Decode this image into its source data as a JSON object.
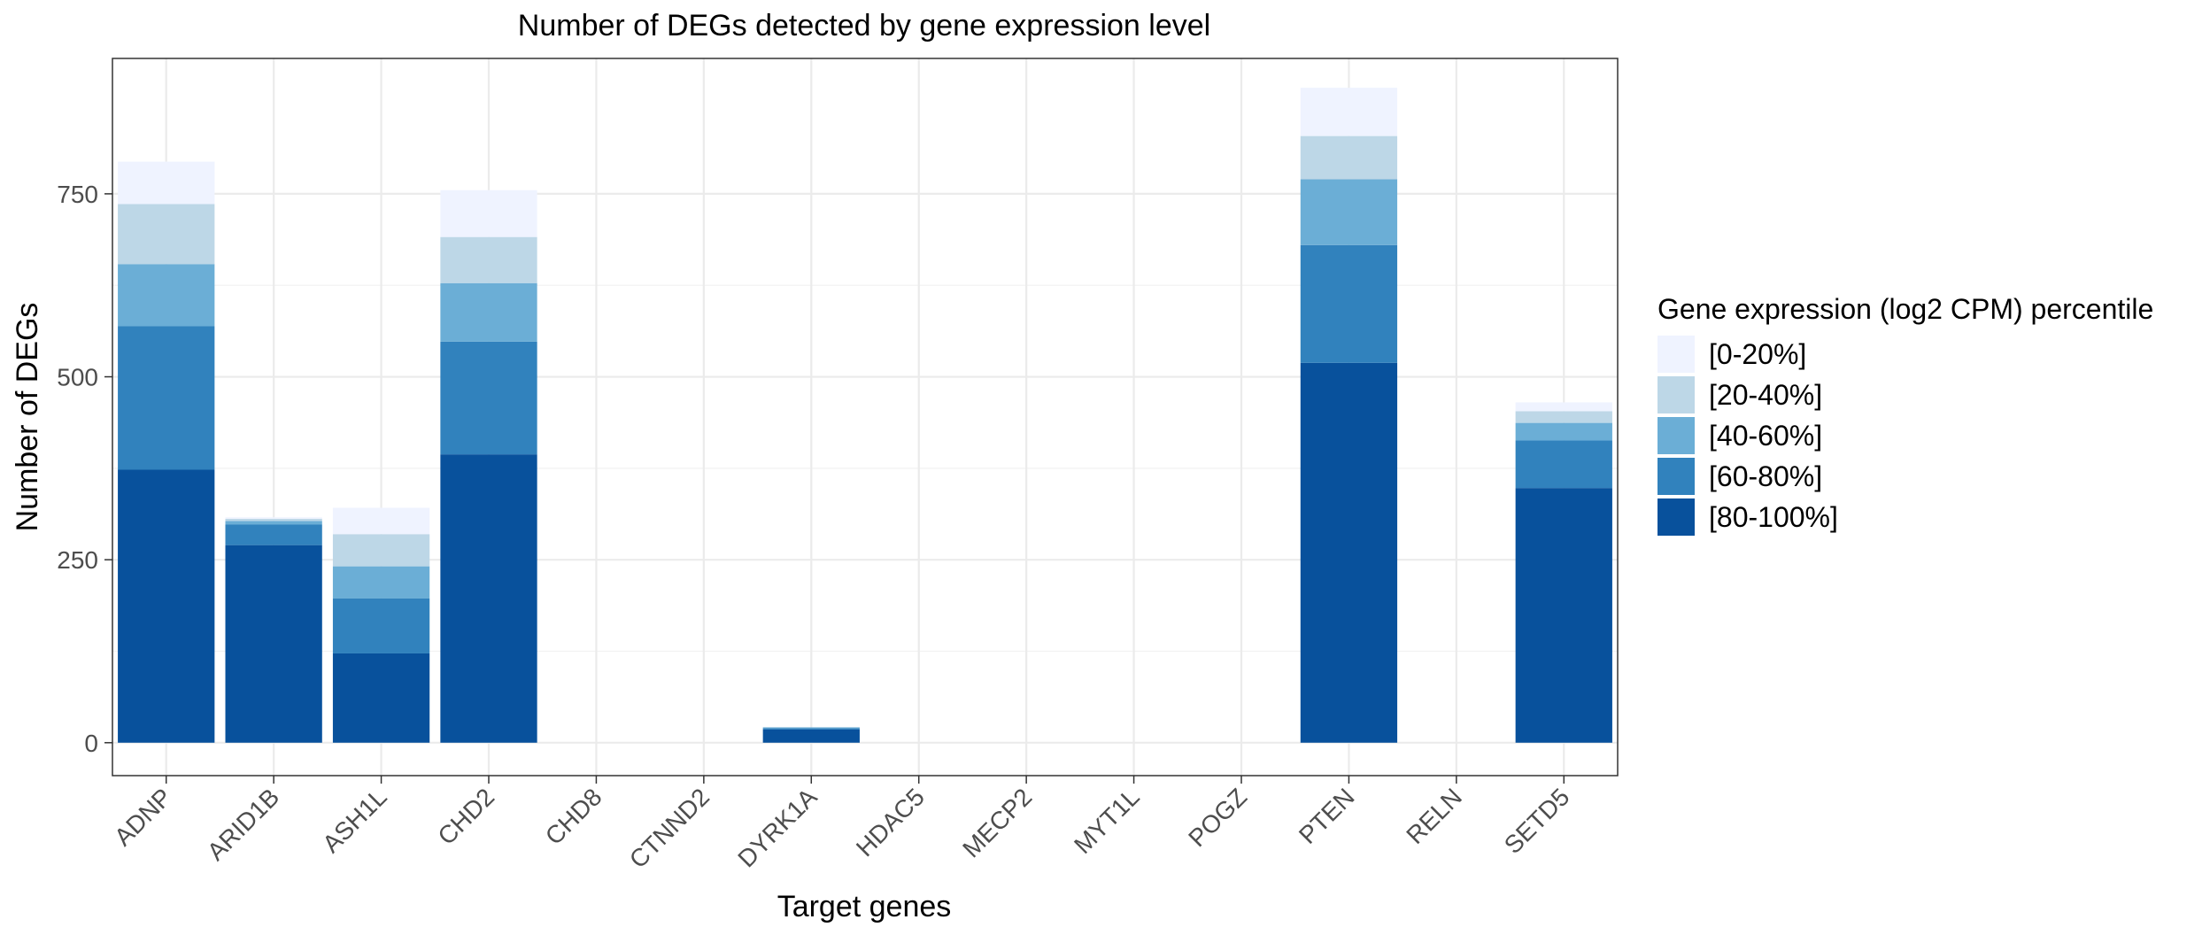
{
  "chart_data": {
    "type": "bar",
    "stacked": true,
    "title": "Number of DEGs detected by gene expression level",
    "xlabel": "Target genes",
    "ylabel": "Number of DEGs",
    "ylim": [
      -45,
      935
    ],
    "yticks": [
      0,
      250,
      500,
      750
    ],
    "grid": true,
    "legend_title": "Gene expression (log2 CPM) percentile",
    "legend_position": "right",
    "categories": [
      "ADNP",
      "ARID1B",
      "ASH1L",
      "CHD2",
      "CHD8",
      "CTNND2",
      "DYRK1A",
      "HDAC5",
      "MECP2",
      "MYT1L",
      "POGZ",
      "PTEN",
      "RELN",
      "SETD5"
    ],
    "series": [
      {
        "name": "[80-100%]",
        "color": "#08519c",
        "values": [
          373,
          270,
          122,
          394,
          0,
          0,
          18,
          0,
          0,
          0,
          0,
          519,
          0,
          348
        ]
      },
      {
        "name": "[60-80%]",
        "color": "#3182bd",
        "values": [
          196,
          28,
          75,
          154,
          0,
          0,
          2,
          0,
          0,
          0,
          0,
          161,
          0,
          65
        ]
      },
      {
        "name": "[40-60%]",
        "color": "#6baed6",
        "values": [
          85,
          5,
          44,
          80,
          0,
          0,
          1,
          0,
          0,
          0,
          0,
          90,
          0,
          24
        ]
      },
      {
        "name": "[20-40%]",
        "color": "#bdd7e7",
        "values": [
          82,
          3,
          44,
          63,
          0,
          0,
          0,
          0,
          0,
          0,
          0,
          59,
          0,
          16
        ]
      },
      {
        "name": "[0-20%]",
        "color": "#eff3ff",
        "values": [
          58,
          2,
          36,
          64,
          0,
          0,
          0,
          0,
          0,
          0,
          0,
          66,
          0,
          12
        ]
      }
    ],
    "legend_order": [
      "[0-20%]",
      "[20-40%]",
      "[40-60%]",
      "[60-80%]",
      "[80-100%]"
    ]
  }
}
